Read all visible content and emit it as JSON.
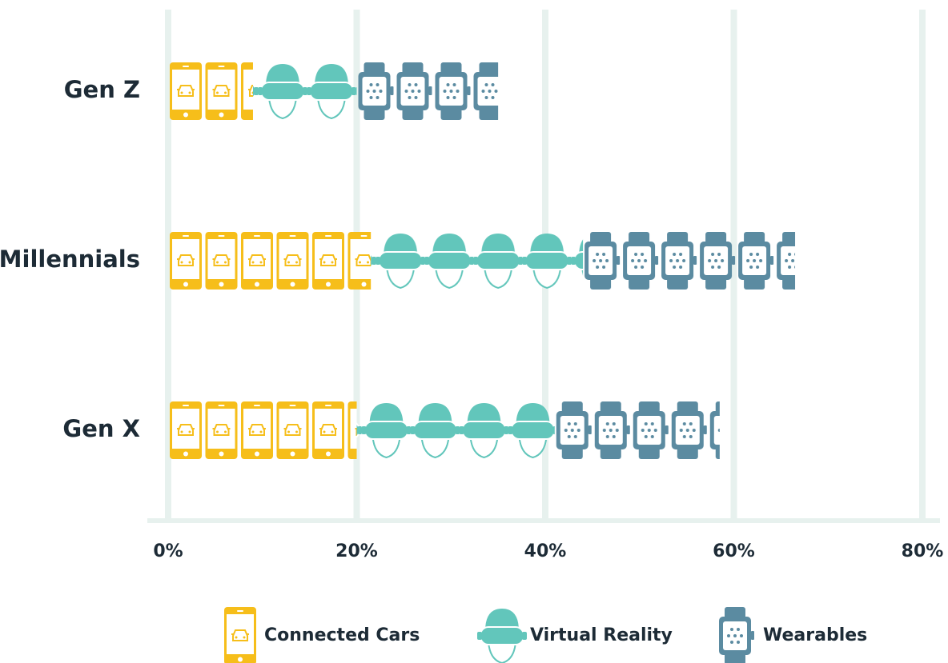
{
  "chart_data": {
    "type": "pictograph-bar",
    "categories": [
      "Gen Z",
      "Millennials",
      "Gen X"
    ],
    "series": [
      {
        "name": "Connected Cars",
        "color": "#f6be1a",
        "values": [
          9,
          21.5,
          20
        ]
      },
      {
        "name": "Virtual Reality",
        "color": "#62c6bb",
        "values": [
          11,
          22.5,
          21
        ]
      },
      {
        "name": "Wearables",
        "color": "#5b8ba1",
        "values": [
          15,
          22.5,
          17.5
        ]
      }
    ],
    "xlim": [
      0,
      80
    ],
    "xticks": [
      {
        "value": 0,
        "label": "0%"
      },
      {
        "value": 20,
        "label": "20%"
      },
      {
        "value": 40,
        "label": "40%"
      },
      {
        "value": 60,
        "label": "60%"
      },
      {
        "value": 80,
        "label": "80%"
      }
    ],
    "grid": true,
    "legend": "bottom"
  }
}
